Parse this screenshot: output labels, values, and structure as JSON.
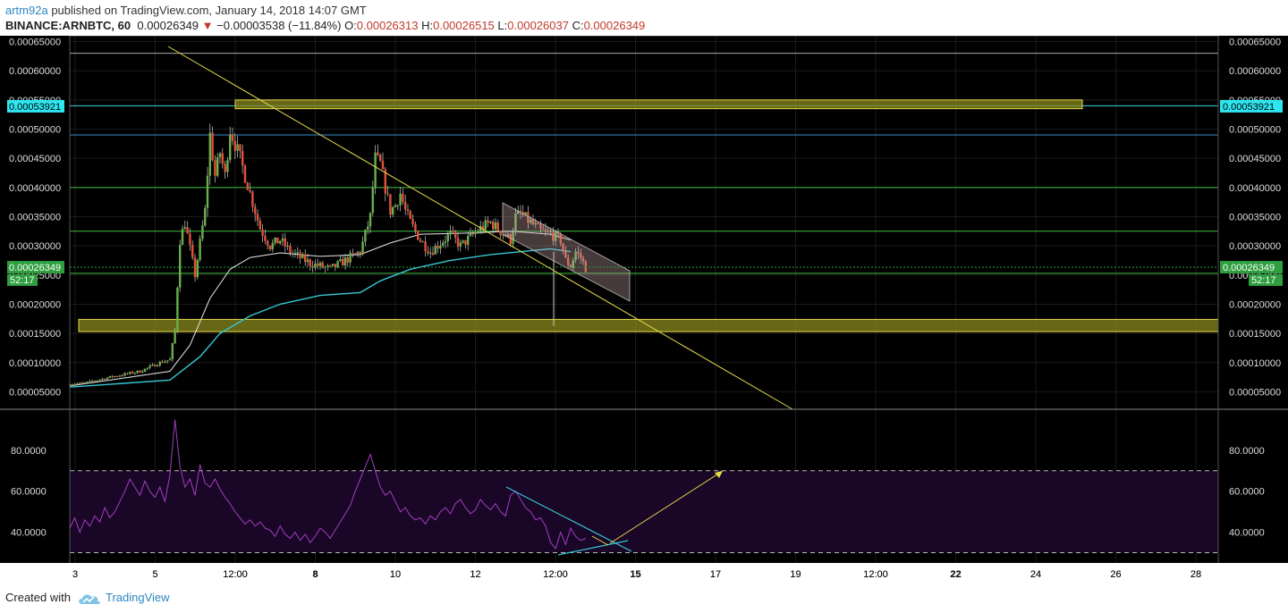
{
  "header": {
    "author": "artm92a",
    "published_text": " published on TradingView.com, January 14, 2018 14:07 GMT",
    "symbol": "BINANCE:ARNBTC, 60",
    "last_price": "0.00026349",
    "change_arrow": "▼",
    "change": "−0.00003538 (−11.84%)",
    "o_label": "O:",
    "o_value": "0.00026313",
    "h_label": "H:",
    "h_value": "0.00026515",
    "l_label": "L:",
    "l_value": "0.00026037",
    "c_label": "C:",
    "c_value": "0.00026349"
  },
  "footer": {
    "created_with": "Created with",
    "brand": "TradingView"
  },
  "colors": {
    "background": "#000000",
    "up": "#6ab04c",
    "down": "#e55039",
    "ma_fast": "#e8e8e8",
    "ma_slow": "#36c6d4",
    "trend": "#e6d94a",
    "zone_fill": "#8a8a1c",
    "rsi_line": "#a040c0",
    "rsi_band": "#1a0626",
    "last_price_tag": "#2e9e3e",
    "cyan_tag": "#2ee6f0"
  },
  "chart_data": [
    {
      "type": "candlestick",
      "title": "",
      "xlabel": "",
      "ylabel": "",
      "x_tick_labels": [
        "3",
        "5",
        "12:00",
        "8",
        "10",
        "12",
        "12:00",
        "15",
        "17",
        "19",
        "12:00",
        "22",
        "24",
        "26",
        "28"
      ],
      "y_tick_labels": [
        "0.00005000",
        "0.00010000",
        "0.00015000",
        "0.00020000",
        "0.00025000",
        "0.00030000",
        "0.00035000",
        "0.00040000",
        "0.00045000",
        "0.00050000",
        "0.00055000",
        "0.00060000",
        "0.00065000"
      ],
      "ylim": [
        2e-05,
        0.00066
      ],
      "grid": true,
      "price_path": [
        [
          0,
          6.3e-05
        ],
        [
          3,
          6.5e-05
        ],
        [
          8,
          7.5e-05
        ],
        [
          14,
          8.5e-05
        ],
        [
          18,
          0.0001
        ],
        [
          20,
          0.000105
        ],
        [
          21,
          0.000155
        ],
        [
          22,
          0.00031
        ],
        [
          23,
          0.00034
        ],
        [
          25,
          0.00025
        ],
        [
          27,
          0.00036
        ],
        [
          28,
          0.00049
        ],
        [
          29,
          0.00042
        ],
        [
          30,
          0.00046
        ],
        [
          31,
          0.00042
        ],
        [
          32,
          0.0005
        ],
        [
          34,
          0.00045
        ],
        [
          36,
          0.00039
        ],
        [
          38,
          0.00033
        ],
        [
          40,
          0.0003
        ],
        [
          42,
          0.00031
        ],
        [
          44,
          0.00029
        ],
        [
          46,
          0.00028
        ],
        [
          48,
          0.00027
        ],
        [
          50,
          0.000265
        ],
        [
          52,
          0.00026
        ],
        [
          54,
          0.00027
        ],
        [
          56,
          0.00028
        ],
        [
          58,
          0.00029
        ],
        [
          60,
          0.00035
        ],
        [
          61,
          0.00045
        ],
        [
          62,
          0.00044
        ],
        [
          63,
          0.0004
        ],
        [
          64,
          0.00036
        ],
        [
          65,
          0.00037
        ],
        [
          66,
          0.00039
        ],
        [
          67,
          0.00036
        ],
        [
          68,
          0.00034
        ],
        [
          70,
          0.00031
        ],
        [
          72,
          0.00029
        ],
        [
          74,
          0.000305
        ],
        [
          76,
          0.00032
        ],
        [
          78,
          0.0003
        ],
        [
          80,
          0.000315
        ],
        [
          82,
          0.00033
        ],
        [
          84,
          0.00034
        ],
        [
          86,
          0.000325
        ],
        [
          88,
          0.00031
        ],
        [
          89,
          0.00035
        ],
        [
          90,
          0.000355
        ],
        [
          92,
          0.00034
        ],
        [
          94,
          0.000325
        ],
        [
          96,
          0.00032
        ],
        [
          98,
          0.00031
        ],
        [
          99,
          0.000275
        ],
        [
          100,
          0.000265
        ],
        [
          101,
          0.00029
        ],
        [
          102,
          0.00028
        ],
        [
          103,
          0.000262
        ]
      ],
      "moving_average_fast": [
        [
          0,
          6e-05
        ],
        [
          20,
          8.5e-05
        ],
        [
          24,
          0.00013
        ],
        [
          28,
          0.00021
        ],
        [
          32,
          0.00026
        ],
        [
          36,
          0.00028
        ],
        [
          42,
          0.000288
        ],
        [
          50,
          0.000282
        ],
        [
          58,
          0.000285
        ],
        [
          64,
          0.000305
        ],
        [
          70,
          0.00032
        ],
        [
          80,
          0.000322
        ],
        [
          88,
          0.000325
        ],
        [
          96,
          0.00032
        ],
        [
          100,
          0.00031
        ]
      ],
      "moving_average_slow": [
        [
          0,
          5.8e-05
        ],
        [
          20,
          7e-05
        ],
        [
          26,
          0.00011
        ],
        [
          30,
          0.00015
        ],
        [
          36,
          0.00018
        ],
        [
          42,
          0.0002
        ],
        [
          50,
          0.000215
        ],
        [
          58,
          0.00022
        ],
        [
          62,
          0.00024
        ],
        [
          68,
          0.00026
        ],
        [
          76,
          0.000275
        ],
        [
          84,
          0.000285
        ],
        [
          90,
          0.00029
        ],
        [
          96,
          0.000295
        ],
        [
          100,
          0.00029
        ]
      ],
      "horizontal_lines": [
        0.00063,
        0.00054,
        0.00049,
        0.0004,
        0.000325,
        0.000253
      ],
      "zones": [
        [
          0.000535,
          0.00055
        ],
        [
          0.000153,
          0.000174
        ]
      ],
      "last_price_label": "0.00026349",
      "cyan_label": "0.00053921",
      "countdown_label": "52:17"
    },
    {
      "type": "line",
      "title": "",
      "y_tick_labels": [
        "40.0000",
        "60.0000",
        "80.0000"
      ],
      "ylim": [
        25,
        100
      ],
      "bands": [
        30,
        70
      ],
      "series": [
        {
          "values": [
            [
              0,
              42
            ],
            [
              1,
              47
            ],
            [
              2,
              40
            ],
            [
              3,
              46
            ],
            [
              4,
              43
            ],
            [
              5,
              48
            ],
            [
              6,
              45
            ],
            [
              7,
              52
            ],
            [
              8,
              47
            ],
            [
              9,
              50
            ],
            [
              10,
              55
            ],
            [
              11,
              60
            ],
            [
              12,
              66
            ],
            [
              13,
              62
            ],
            [
              14,
              58
            ],
            [
              15,
              65
            ],
            [
              16,
              60
            ],
            [
              17,
              57
            ],
            [
              18,
              62
            ],
            [
              19,
              55
            ],
            [
              20,
              68
            ],
            [
              21,
              95
            ],
            [
              22,
              72
            ],
            [
              23,
              62
            ],
            [
              24,
              66
            ],
            [
              25,
              58
            ],
            [
              26,
              73
            ],
            [
              27,
              64
            ],
            [
              28,
              62
            ],
            [
              29,
              66
            ],
            [
              30,
              61
            ],
            [
              31,
              57
            ],
            [
              32,
              54
            ],
            [
              33,
              50
            ],
            [
              34,
              47
            ],
            [
              35,
              44
            ],
            [
              36,
              46
            ],
            [
              37,
              43
            ],
            [
              38,
              45
            ],
            [
              39,
              42
            ],
            [
              40,
              41
            ],
            [
              41,
              38
            ],
            [
              42,
              43
            ],
            [
              43,
              39
            ],
            [
              44,
              37
            ],
            [
              45,
              40
            ],
            [
              46,
              36
            ],
            [
              47,
              39
            ],
            [
              48,
              35
            ],
            [
              49,
              38
            ],
            [
              50,
              42
            ],
            [
              51,
              40
            ],
            [
              52,
              37
            ],
            [
              53,
              41
            ],
            [
              54,
              45
            ],
            [
              55,
              49
            ],
            [
              56,
              53
            ],
            [
              57,
              60
            ],
            [
              58,
              66
            ],
            [
              59,
              72
            ],
            [
              60,
              78
            ],
            [
              61,
              70
            ],
            [
              62,
              62
            ],
            [
              63,
              58
            ],
            [
              64,
              60
            ],
            [
              65,
              55
            ],
            [
              66,
              50
            ],
            [
              67,
              52
            ],
            [
              68,
              48
            ],
            [
              69,
              46
            ],
            [
              70,
              47
            ],
            [
              71,
              44
            ],
            [
              72,
              48
            ],
            [
              73,
              46
            ],
            [
              74,
              50
            ],
            [
              75,
              52
            ],
            [
              76,
              49
            ],
            [
              77,
              54
            ],
            [
              78,
              56
            ],
            [
              79,
              52
            ],
            [
              80,
              49
            ],
            [
              81,
              51
            ],
            [
              82,
              56
            ],
            [
              83,
              53
            ],
            [
              84,
              51
            ],
            [
              85,
              54
            ],
            [
              86,
              50
            ],
            [
              87,
              48
            ],
            [
              88,
              58
            ],
            [
              89,
              60
            ],
            [
              90,
              56
            ],
            [
              91,
              52
            ],
            [
              92,
              50
            ],
            [
              93,
              46
            ],
            [
              94,
              47
            ],
            [
              95,
              43
            ],
            [
              96,
              35
            ],
            [
              97,
              32
            ],
            [
              98,
              40
            ],
            [
              99,
              34
            ],
            [
              100,
              42
            ],
            [
              101,
              38
            ],
            [
              102,
              36
            ],
            [
              103,
              37
            ]
          ]
        }
      ]
    }
  ]
}
